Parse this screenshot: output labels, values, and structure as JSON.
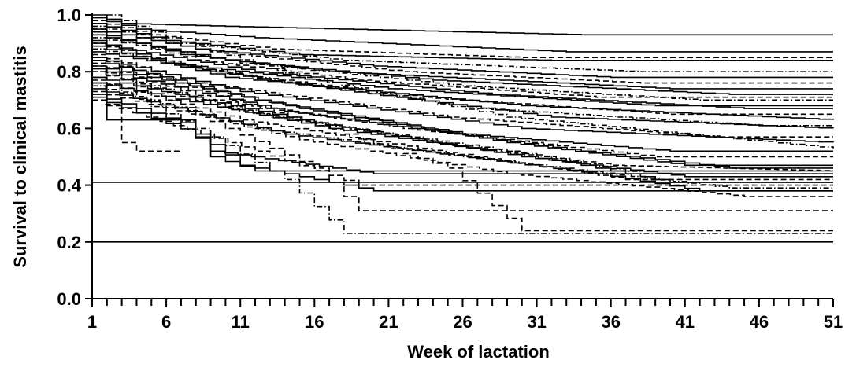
{
  "chart_data": {
    "type": "line",
    "title": "",
    "xlabel": "Week of lactation",
    "ylabel": "Survival to clinical mastitis",
    "xlim": [
      1,
      51
    ],
    "ylim": [
      0.0,
      1.0
    ],
    "x_ticks": [
      "1",
      "6",
      "11",
      "16",
      "21",
      "26",
      "31",
      "36",
      "41",
      "46",
      "51"
    ],
    "y_ticks": [
      "0.0",
      "0.2",
      "0.4",
      "0.6",
      "0.8",
      "1.0"
    ],
    "grid": false,
    "legend": "none",
    "line_color": "#000000",
    "series": [
      {
        "style": "solid",
        "points": [
          [
            1,
            1.0
          ],
          [
            3,
            0.97
          ],
          [
            10,
            0.96
          ],
          [
            34,
            0.93
          ],
          [
            51,
            0.93
          ]
        ]
      },
      {
        "style": "solid",
        "points": [
          [
            1,
            0.99
          ],
          [
            4,
            0.95
          ],
          [
            12,
            0.92
          ],
          [
            33,
            0.87
          ],
          [
            51,
            0.87
          ]
        ]
      },
      {
        "style": "dashed",
        "points": [
          [
            1,
            0.98
          ],
          [
            5,
            0.93
          ],
          [
            13,
            0.88
          ],
          [
            30,
            0.85
          ],
          [
            51,
            0.85
          ]
        ]
      },
      {
        "style": "solid",
        "points": [
          [
            1,
            0.97
          ],
          [
            6,
            0.91
          ],
          [
            15,
            0.86
          ],
          [
            32,
            0.84
          ],
          [
            51,
            0.84
          ]
        ]
      },
      {
        "style": "dotdash",
        "points": [
          [
            1,
            0.96
          ],
          [
            7,
            0.9
          ],
          [
            18,
            0.84
          ],
          [
            38,
            0.8
          ],
          [
            51,
            0.8
          ]
        ]
      },
      {
        "style": "solid",
        "points": [
          [
            1,
            0.95
          ],
          [
            8,
            0.88
          ],
          [
            20,
            0.82
          ],
          [
            36,
            0.78
          ],
          [
            51,
            0.78
          ]
        ]
      },
      {
        "style": "dashed",
        "points": [
          [
            1,
            0.95
          ],
          [
            9,
            0.87
          ],
          [
            22,
            0.8
          ],
          [
            38,
            0.76
          ],
          [
            51,
            0.76
          ]
        ]
      },
      {
        "style": "solid",
        "points": [
          [
            1,
            0.94
          ],
          [
            7,
            0.86
          ],
          [
            17,
            0.8
          ],
          [
            40,
            0.74
          ],
          [
            51,
            0.74
          ]
        ]
      },
      {
        "style": "solid",
        "points": [
          [
            1,
            0.93
          ],
          [
            10,
            0.84
          ],
          [
            24,
            0.77
          ],
          [
            44,
            0.72
          ],
          [
            51,
            0.72
          ]
        ]
      },
      {
        "style": "dashed",
        "points": [
          [
            1,
            0.93
          ],
          [
            8,
            0.84
          ],
          [
            19,
            0.77
          ],
          [
            35,
            0.71
          ],
          [
            51,
            0.71
          ]
        ]
      },
      {
        "style": "dotdash",
        "points": [
          [
            1,
            0.92
          ],
          [
            11,
            0.83
          ],
          [
            26,
            0.75
          ],
          [
            42,
            0.7
          ],
          [
            51,
            0.7
          ]
        ]
      },
      {
        "style": "solid",
        "points": [
          [
            1,
            0.91
          ],
          [
            6,
            0.83
          ],
          [
            21,
            0.74
          ],
          [
            39,
            0.68
          ],
          [
            51,
            0.68
          ]
        ]
      },
      {
        "style": "solid",
        "points": [
          [
            1,
            0.9
          ],
          [
            12,
            0.8
          ],
          [
            28,
            0.72
          ],
          [
            45,
            0.67
          ],
          [
            51,
            0.67
          ]
        ]
      },
      {
        "style": "dashed",
        "points": [
          [
            1,
            0.9
          ],
          [
            9,
            0.8
          ],
          [
            23,
            0.71
          ],
          [
            40,
            0.65
          ],
          [
            51,
            0.65
          ]
        ]
      },
      {
        "style": "solid",
        "points": [
          [
            1,
            0.89
          ],
          [
            10,
            0.78
          ],
          [
            30,
            0.68
          ],
          [
            51,
            0.63
          ]
        ]
      },
      {
        "style": "dotdash",
        "points": [
          [
            1,
            0.88
          ],
          [
            13,
            0.77
          ],
          [
            27,
            0.67
          ],
          [
            46,
            0.61
          ],
          [
            51,
            0.61
          ]
        ]
      },
      {
        "style": "solid",
        "points": [
          [
            1,
            0.87
          ],
          [
            14,
            0.76
          ],
          [
            32,
            0.64
          ],
          [
            51,
            0.6
          ]
        ]
      },
      {
        "style": "dashed",
        "points": [
          [
            1,
            0.86
          ],
          [
            8,
            0.76
          ],
          [
            25,
            0.64
          ],
          [
            43,
            0.57
          ],
          [
            51,
            0.57
          ]
        ]
      },
      {
        "style": "solid",
        "points": [
          [
            1,
            0.85
          ],
          [
            11,
            0.73
          ],
          [
            30,
            0.6
          ],
          [
            51,
            0.55
          ]
        ]
      },
      {
        "style": "dotdash",
        "points": [
          [
            2,
            1.0
          ],
          [
            6,
            0.92
          ],
          [
            15,
            0.78
          ],
          [
            29,
            0.64
          ],
          [
            51,
            0.53
          ]
        ]
      },
      {
        "style": "solid",
        "points": [
          [
            1,
            0.84
          ],
          [
            12,
            0.7
          ],
          [
            26,
            0.58
          ],
          [
            40,
            0.52
          ],
          [
            51,
            0.52
          ]
        ]
      },
      {
        "style": "dashed",
        "points": [
          [
            1,
            0.83
          ],
          [
            9,
            0.7
          ],
          [
            22,
            0.6
          ],
          [
            39,
            0.5
          ],
          [
            51,
            0.5
          ]
        ]
      },
      {
        "style": "solid",
        "points": [
          [
            1,
            0.82
          ],
          [
            15,
            0.67
          ],
          [
            29,
            0.55
          ],
          [
            41,
            0.47
          ],
          [
            51,
            0.47
          ]
        ]
      },
      {
        "style": "solid",
        "points": [
          [
            1,
            0.81
          ],
          [
            14,
            0.66
          ],
          [
            34,
            0.52
          ],
          [
            44,
            0.46
          ],
          [
            51,
            0.46
          ]
        ]
      },
      {
        "style": "dashed",
        "points": [
          [
            1,
            0.8
          ],
          [
            10,
            0.67
          ],
          [
            24,
            0.55
          ],
          [
            36,
            0.47
          ],
          [
            51,
            0.45
          ]
        ]
      },
      {
        "style": "dotdash",
        "points": [
          [
            1,
            0.8
          ],
          [
            13,
            0.64
          ],
          [
            29,
            0.52
          ],
          [
            38,
            0.44
          ],
          [
            51,
            0.44
          ]
        ]
      },
      {
        "style": "solid",
        "points": [
          [
            1,
            0.78
          ],
          [
            16,
            0.62
          ],
          [
            30,
            0.5
          ],
          [
            41,
            0.43
          ],
          [
            51,
            0.43
          ]
        ]
      },
      {
        "style": "dashed",
        "points": [
          [
            1,
            0.77
          ],
          [
            11,
            0.63
          ],
          [
            23,
            0.53
          ],
          [
            37,
            0.42
          ],
          [
            51,
            0.42
          ]
        ]
      },
      {
        "style": "solid",
        "points": [
          [
            1,
            0.76
          ],
          [
            17,
            0.6
          ],
          [
            33,
            0.48
          ],
          [
            40,
            0.41
          ],
          [
            51,
            0.41
          ]
        ]
      },
      {
        "style": "dotdash",
        "points": [
          [
            1,
            0.75
          ],
          [
            12,
            0.6
          ],
          [
            26,
            0.5
          ],
          [
            44,
            0.39
          ],
          [
            51,
            0.39
          ]
        ]
      },
      {
        "style": "solid",
        "points": [
          [
            1,
            0.74
          ],
          [
            14,
            0.58
          ],
          [
            35,
            0.44
          ],
          [
            42,
            0.38
          ],
          [
            51,
            0.38
          ]
        ]
      },
      {
        "style": "dashed",
        "points": [
          [
            1,
            0.73
          ],
          [
            15,
            0.56
          ],
          [
            29,
            0.44
          ],
          [
            45,
            0.36
          ],
          [
            51,
            0.36
          ]
        ]
      },
      {
        "style": "solid",
        "points": [
          [
            1,
            0.72
          ],
          [
            7,
            0.62
          ],
          [
            9,
            0.52
          ],
          [
            20,
            0.44
          ],
          [
            51,
            0.44
          ]
        ]
      },
      {
        "style": "solid",
        "points": [
          [
            1,
            0.71
          ],
          [
            8,
            0.58
          ],
          [
            11,
            0.47
          ],
          [
            20,
            0.38
          ],
          [
            51,
            0.38
          ]
        ]
      },
      {
        "style": "dashed",
        "points": [
          [
            1,
            0.7
          ],
          [
            12,
            0.52
          ],
          [
            19,
            0.4
          ],
          [
            51,
            0.4
          ]
        ]
      },
      {
        "style": "dashed",
        "points": [
          [
            1,
            0.82
          ],
          [
            10,
            0.6
          ],
          [
            16,
            0.46
          ],
          [
            19,
            0.31
          ],
          [
            51,
            0.31
          ]
        ]
      },
      {
        "style": "dotdash",
        "points": [
          [
            1,
            0.78
          ],
          [
            8,
            0.6
          ],
          [
            14,
            0.42
          ],
          [
            18,
            0.23
          ],
          [
            51,
            0.23
          ]
        ]
      },
      {
        "style": "dashed",
        "points": [
          [
            1,
            0.85
          ],
          [
            18,
            0.58
          ],
          [
            25,
            0.46
          ],
          [
            30,
            0.24
          ],
          [
            51,
            0.24
          ]
        ]
      },
      {
        "style": "dashed",
        "points": [
          [
            2,
            0.68
          ],
          [
            3,
            0.55
          ],
          [
            4,
            0.52
          ],
          [
            7,
            0.52
          ]
        ]
      },
      {
        "style": "solid",
        "points": [
          [
            1,
            0.76
          ],
          [
            2,
            0.63
          ],
          [
            7,
            0.63
          ],
          [
            9,
            0.5
          ],
          [
            12,
            0.45
          ],
          [
            51,
            0.45
          ]
        ]
      },
      {
        "style": "solid",
        "points": [
          [
            1,
            0.41
          ],
          [
            51,
            0.41
          ]
        ]
      },
      {
        "style": "solid",
        "points": [
          [
            1,
            0.2
          ],
          [
            51,
            0.2
          ]
        ]
      }
    ]
  }
}
